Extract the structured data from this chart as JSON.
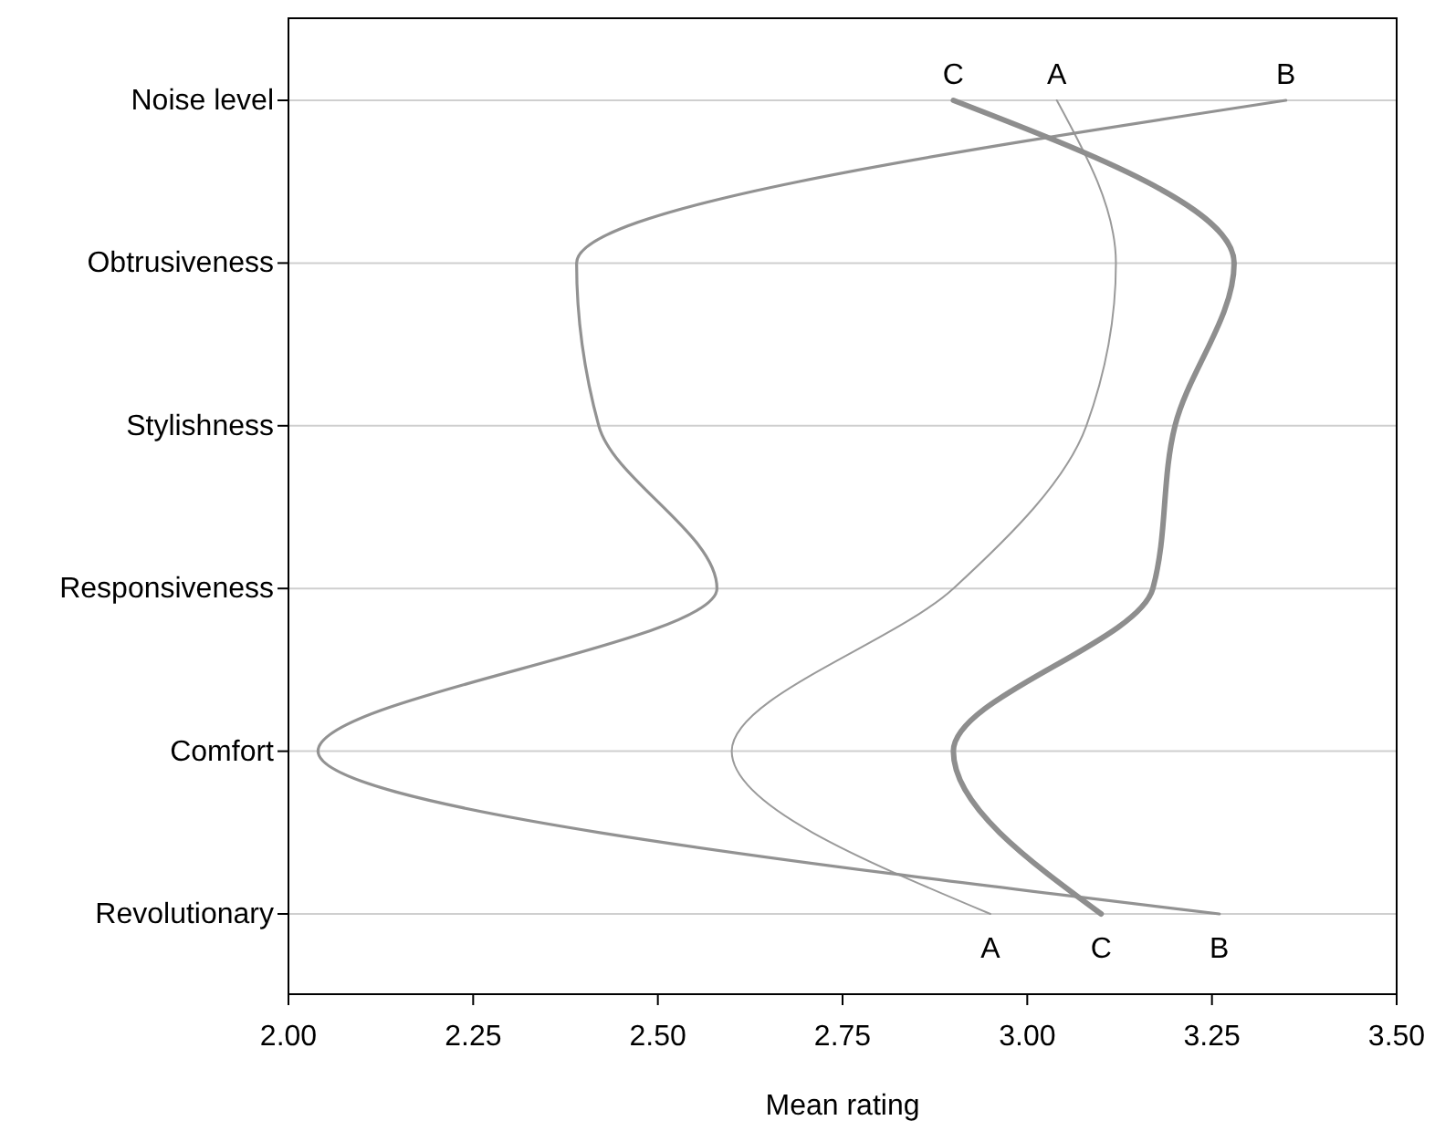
{
  "chart_data": {
    "type": "line",
    "orientation": "horizontal",
    "xlabel": "Mean rating",
    "categories": [
      "Noise level",
      "Obtrusiveness",
      "Stylishness",
      "Responsiveness",
      "Comfort",
      "Revolutionary"
    ],
    "xlim": [
      2.0,
      3.5
    ],
    "xticks": [
      {
        "value": 2,
        "label": "2.00"
      },
      {
        "value": 2.25,
        "label": "2.25"
      },
      {
        "value": 2.5,
        "label": "2.50"
      },
      {
        "value": 2.75,
        "label": "2.75"
      },
      {
        "value": 3,
        "label": "3.00"
      },
      {
        "value": 3.25,
        "label": "3.25"
      },
      {
        "value": 3.5,
        "label": "3.50"
      }
    ],
    "grid": "y",
    "marker": "none",
    "line_style": "solid",
    "series": [
      {
        "name": "A",
        "color": "#9a9a9a",
        "values": [
          3.04,
          3.12,
          3.08,
          2.9,
          2.6,
          2.95
        ]
      },
      {
        "name": "B",
        "color": "#929292",
        "values": [
          3.35,
          2.39,
          2.42,
          2.58,
          2.04,
          3.26
        ]
      },
      {
        "name": "C",
        "color": "#8e8e8e",
        "values": [
          2.9,
          3.28,
          3.2,
          3.17,
          2.9,
          3.1
        ]
      }
    ]
  }
}
